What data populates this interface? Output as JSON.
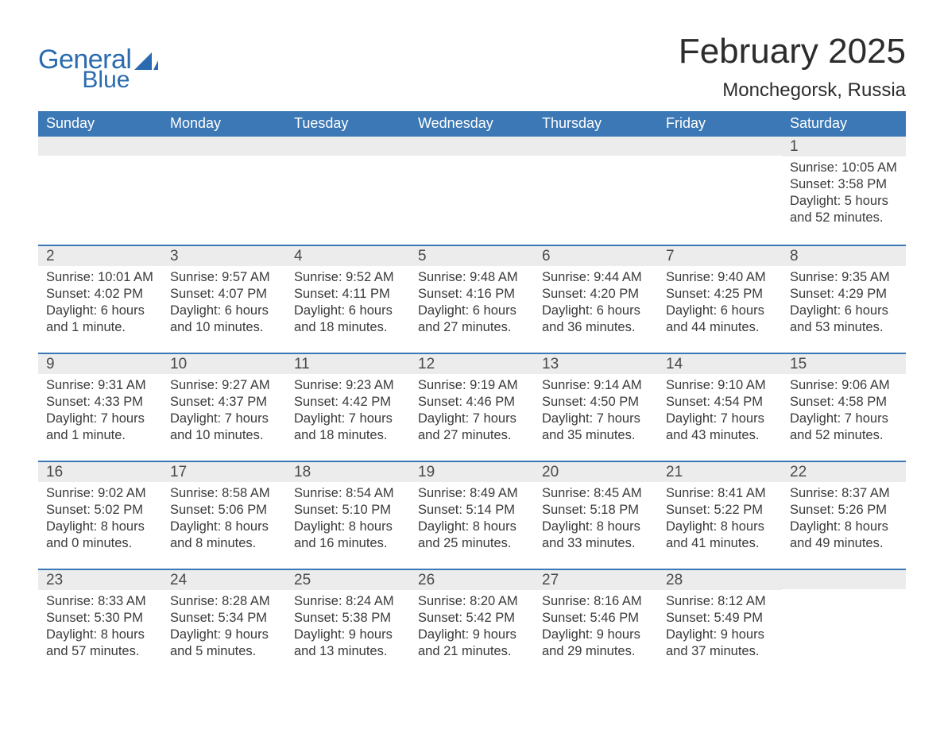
{
  "logo": {
    "general": "General",
    "blue": "Blue",
    "brand_color": "#2a6bb0"
  },
  "title": "February 2025",
  "location": "Monchegorsk, Russia",
  "colors": {
    "header_bg": "#3b78b5",
    "header_text": "#ffffff",
    "daynum_bg": "#ececec",
    "divider": "#3b78b5",
    "body_text": "#3a3a3a",
    "page_bg": "#ffffff"
  },
  "weekdays": [
    "Sunday",
    "Monday",
    "Tuesday",
    "Wednesday",
    "Thursday",
    "Friday",
    "Saturday"
  ],
  "weeks": [
    [
      null,
      null,
      null,
      null,
      null,
      null,
      {
        "n": "1",
        "sunrise": "10:05 AM",
        "sunset": "3:58 PM",
        "daylight": "5 hours and 52 minutes."
      }
    ],
    [
      {
        "n": "2",
        "sunrise": "10:01 AM",
        "sunset": "4:02 PM",
        "daylight": "6 hours and 1 minute."
      },
      {
        "n": "3",
        "sunrise": "9:57 AM",
        "sunset": "4:07 PM",
        "daylight": "6 hours and 10 minutes."
      },
      {
        "n": "4",
        "sunrise": "9:52 AM",
        "sunset": "4:11 PM",
        "daylight": "6 hours and 18 minutes."
      },
      {
        "n": "5",
        "sunrise": "9:48 AM",
        "sunset": "4:16 PM",
        "daylight": "6 hours and 27 minutes."
      },
      {
        "n": "6",
        "sunrise": "9:44 AM",
        "sunset": "4:20 PM",
        "daylight": "6 hours and 36 minutes."
      },
      {
        "n": "7",
        "sunrise": "9:40 AM",
        "sunset": "4:25 PM",
        "daylight": "6 hours and 44 minutes."
      },
      {
        "n": "8",
        "sunrise": "9:35 AM",
        "sunset": "4:29 PM",
        "daylight": "6 hours and 53 minutes."
      }
    ],
    [
      {
        "n": "9",
        "sunrise": "9:31 AM",
        "sunset": "4:33 PM",
        "daylight": "7 hours and 1 minute."
      },
      {
        "n": "10",
        "sunrise": "9:27 AM",
        "sunset": "4:37 PM",
        "daylight": "7 hours and 10 minutes."
      },
      {
        "n": "11",
        "sunrise": "9:23 AM",
        "sunset": "4:42 PM",
        "daylight": "7 hours and 18 minutes."
      },
      {
        "n": "12",
        "sunrise": "9:19 AM",
        "sunset": "4:46 PM",
        "daylight": "7 hours and 27 minutes."
      },
      {
        "n": "13",
        "sunrise": "9:14 AM",
        "sunset": "4:50 PM",
        "daylight": "7 hours and 35 minutes."
      },
      {
        "n": "14",
        "sunrise": "9:10 AM",
        "sunset": "4:54 PM",
        "daylight": "7 hours and 43 minutes."
      },
      {
        "n": "15",
        "sunrise": "9:06 AM",
        "sunset": "4:58 PM",
        "daylight": "7 hours and 52 minutes."
      }
    ],
    [
      {
        "n": "16",
        "sunrise": "9:02 AM",
        "sunset": "5:02 PM",
        "daylight": "8 hours and 0 minutes."
      },
      {
        "n": "17",
        "sunrise": "8:58 AM",
        "sunset": "5:06 PM",
        "daylight": "8 hours and 8 minutes."
      },
      {
        "n": "18",
        "sunrise": "8:54 AM",
        "sunset": "5:10 PM",
        "daylight": "8 hours and 16 minutes."
      },
      {
        "n": "19",
        "sunrise": "8:49 AM",
        "sunset": "5:14 PM",
        "daylight": "8 hours and 25 minutes."
      },
      {
        "n": "20",
        "sunrise": "8:45 AM",
        "sunset": "5:18 PM",
        "daylight": "8 hours and 33 minutes."
      },
      {
        "n": "21",
        "sunrise": "8:41 AM",
        "sunset": "5:22 PM",
        "daylight": "8 hours and 41 minutes."
      },
      {
        "n": "22",
        "sunrise": "8:37 AM",
        "sunset": "5:26 PM",
        "daylight": "8 hours and 49 minutes."
      }
    ],
    [
      {
        "n": "23",
        "sunrise": "8:33 AM",
        "sunset": "5:30 PM",
        "daylight": "8 hours and 57 minutes."
      },
      {
        "n": "24",
        "sunrise": "8:28 AM",
        "sunset": "5:34 PM",
        "daylight": "9 hours and 5 minutes."
      },
      {
        "n": "25",
        "sunrise": "8:24 AM",
        "sunset": "5:38 PM",
        "daylight": "9 hours and 13 minutes."
      },
      {
        "n": "26",
        "sunrise": "8:20 AM",
        "sunset": "5:42 PM",
        "daylight": "9 hours and 21 minutes."
      },
      {
        "n": "27",
        "sunrise": "8:16 AM",
        "sunset": "5:46 PM",
        "daylight": "9 hours and 29 minutes."
      },
      {
        "n": "28",
        "sunrise": "8:12 AM",
        "sunset": "5:49 PM",
        "daylight": "9 hours and 37 minutes."
      },
      null
    ]
  ],
  "labels": {
    "sunrise": "Sunrise:",
    "sunset": "Sunset:",
    "daylight": "Daylight:"
  }
}
